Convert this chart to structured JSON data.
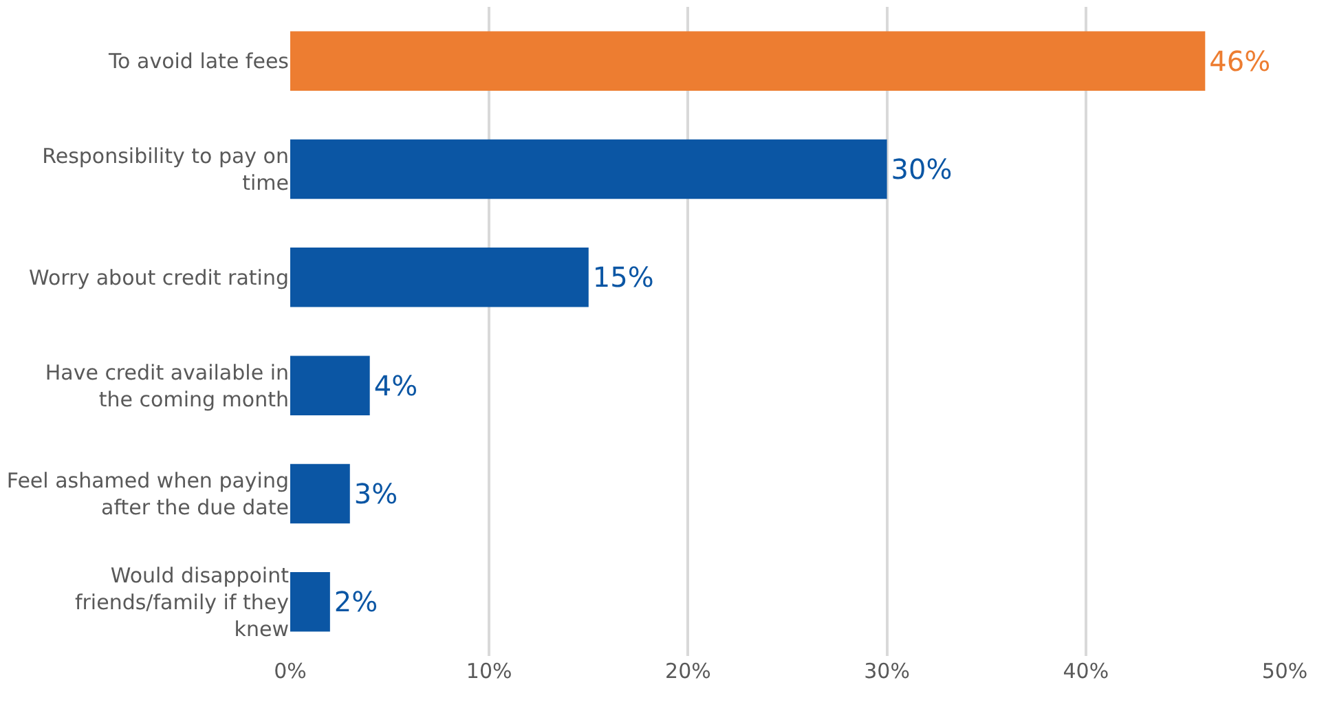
{
  "chart_data": {
    "type": "bar",
    "orientation": "horizontal",
    "categories": [
      "To avoid late fees",
      "Responsibility to pay on time",
      "Worry about credit rating",
      "Have credit available in the coming month",
      "Feel ashamed when paying after the due date",
      "Would disappoint friends/family if they knew"
    ],
    "values": [
      46,
      30,
      15,
      4,
      3,
      2
    ],
    "colors": [
      "#ed7d31",
      "#0b56a4",
      "#0b56a4",
      "#0b56a4",
      "#0b56a4",
      "#0b56a4"
    ],
    "value_labels": [
      "46%",
      "30%",
      "15%",
      "4%",
      "3%",
      "2%"
    ],
    "xlim": [
      0,
      50
    ],
    "xticks": [
      {
        "value": 0,
        "label": "0%"
      },
      {
        "value": 10,
        "label": "10%"
      },
      {
        "value": 20,
        "label": "20%"
      },
      {
        "value": 30,
        "label": "30%"
      },
      {
        "value": 40,
        "label": "40%"
      },
      {
        "value": 50,
        "label": "50%"
      }
    ],
    "grid": "x",
    "legend": false
  }
}
